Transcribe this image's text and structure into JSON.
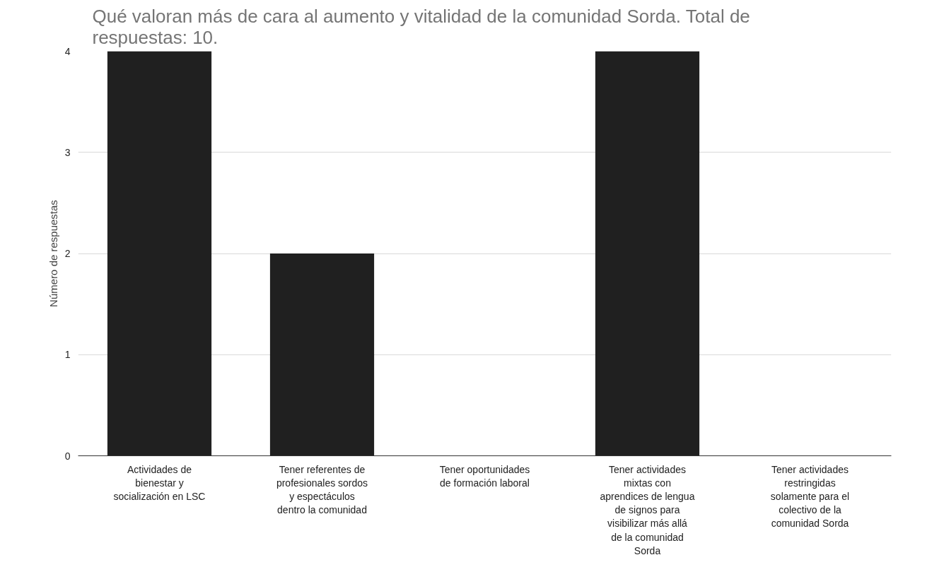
{
  "chart_data": {
    "type": "bar",
    "title": "Qué valoran más de cara al aumento y vitalidad de la comunidad Sorda. Total de respuestas: 10.",
    "ylabel": "Número de respuestas",
    "categories": [
      "Actividades de bienestar y socialización en LSC",
      "Tener referentes de profesionales sordos y espectáculos dentro la comunidad",
      "Tener oportunidades de formación laboral",
      "Tener actividades mixtas con aprendices de lengua de signos para visibilizar más allá de la comunidad Sorda",
      "Tener actividades restringidas solamente para el colectivo de la comunidad Sorda"
    ],
    "values": [
      4,
      2,
      0,
      4,
      0
    ],
    "color": "#202020",
    "ylim": [
      0,
      4
    ],
    "yticks": [
      0,
      1,
      2,
      3,
      4
    ],
    "grid": "y"
  }
}
